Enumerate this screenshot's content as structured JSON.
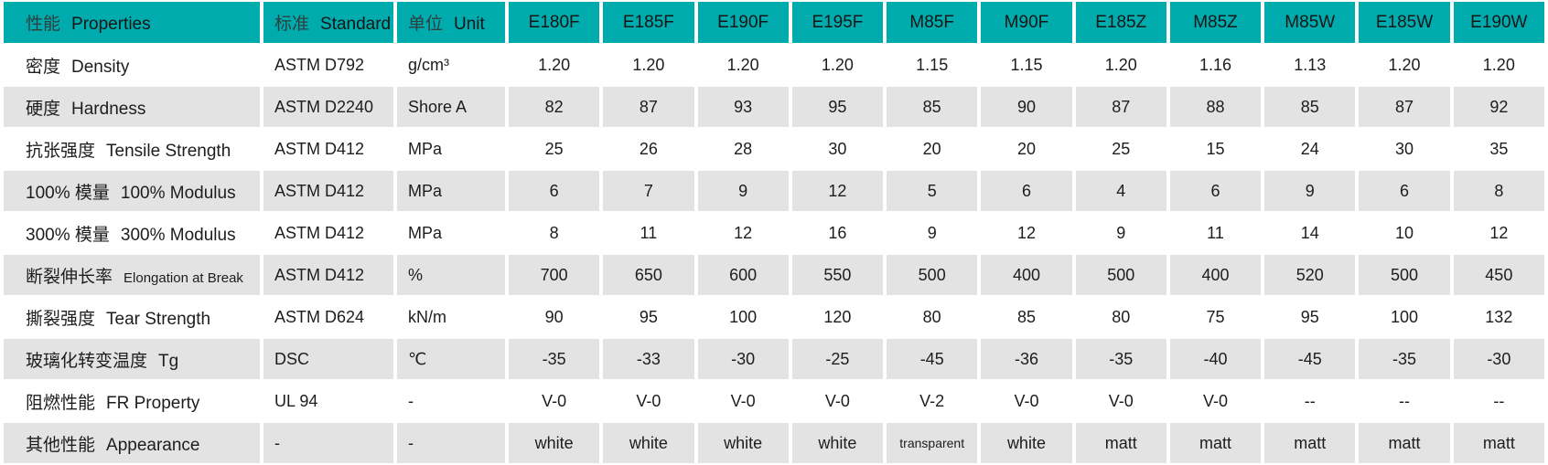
{
  "chart_data": {
    "type": "table",
    "header": {
      "properties_zh": "性能",
      "properties_en": "Properties",
      "standard_zh": "标准",
      "standard_en": "Standard",
      "unit_zh": "单位",
      "unit_en": "Unit",
      "products": [
        "E180F",
        "E185F",
        "E190F",
        "E195F",
        "M85F",
        "M90F",
        "E185Z",
        "M85Z",
        "M85W",
        "E185W",
        "E190W"
      ]
    },
    "rows": [
      {
        "zh": "密度",
        "en": "Density",
        "standard": "ASTM D792",
        "unit": "g/cm³",
        "values": [
          "1.20",
          "1.20",
          "1.20",
          "1.20",
          "1.15",
          "1.15",
          "1.20",
          "1.16",
          "1.13",
          "1.20",
          "1.20"
        ]
      },
      {
        "zh": "硬度",
        "en": "Hardness",
        "standard": "ASTM D2240",
        "unit": "Shore A",
        "values": [
          "82",
          "87",
          "93",
          "95",
          "85",
          "90",
          "87",
          "88",
          "85",
          "87",
          "92"
        ]
      },
      {
        "zh": "抗张强度",
        "en": "Tensile Strength",
        "standard": "ASTM D412",
        "unit": "MPa",
        "values": [
          "25",
          "26",
          "28",
          "30",
          "20",
          "20",
          "25",
          "15",
          "24",
          "30",
          "35"
        ]
      },
      {
        "zh": "100% 模量",
        "en": "100% Modulus",
        "standard": "ASTM D412",
        "unit": "MPa",
        "values": [
          "6",
          "7",
          "9",
          "12",
          "5",
          "6",
          "4",
          "6",
          "9",
          "6",
          "8"
        ]
      },
      {
        "zh": "300% 模量",
        "en": "300% Modulus",
        "standard": "ASTM D412",
        "unit": "MPa",
        "values": [
          "8",
          "11",
          "12",
          "16",
          "9",
          "12",
          "9",
          "11",
          "14",
          "10",
          "12"
        ]
      },
      {
        "zh": "断裂伸长率",
        "en": "Elongation at Break",
        "standard": "ASTM D412",
        "unit": "%",
        "values": [
          "700",
          "650",
          "600",
          "550",
          "500",
          "400",
          "500",
          "400",
          "520",
          "500",
          "450"
        ]
      },
      {
        "zh": "撕裂强度",
        "en": "Tear Strength",
        "standard": "ASTM D624",
        "unit": "kN/m",
        "values": [
          "90",
          "95",
          "100",
          "120",
          "80",
          "85",
          "80",
          "75",
          "95",
          "100",
          "132"
        ]
      },
      {
        "zh": "玻璃化转变温度",
        "en": "Tg",
        "standard": "DSC",
        "unit": "℃",
        "values": [
          "-35",
          "-33",
          "-30",
          "-25",
          "-45",
          "-36",
          "-35",
          "-40",
          "-45",
          "-35",
          "-30"
        ]
      },
      {
        "zh": "阻燃性能",
        "en": "FR Property",
        "standard": "UL 94",
        "unit": "-",
        "values": [
          "V-0",
          "V-0",
          "V-0",
          "V-0",
          "V-2",
          "V-0",
          "V-0",
          "V-0",
          "--",
          "--",
          "--"
        ]
      },
      {
        "zh": "其他性能",
        "en": "Appearance",
        "standard": "-",
        "unit": "-",
        "values": [
          "white",
          "white",
          "white",
          "white",
          "transparent",
          "white",
          "matt",
          "matt",
          "matt",
          "matt",
          "matt"
        ]
      }
    ]
  },
  "colors": {
    "header_bg": "#00abad",
    "row_alt_bg": "#e3e3e3",
    "row_bg": "#ffffff",
    "text": "#1d1d1d"
  }
}
